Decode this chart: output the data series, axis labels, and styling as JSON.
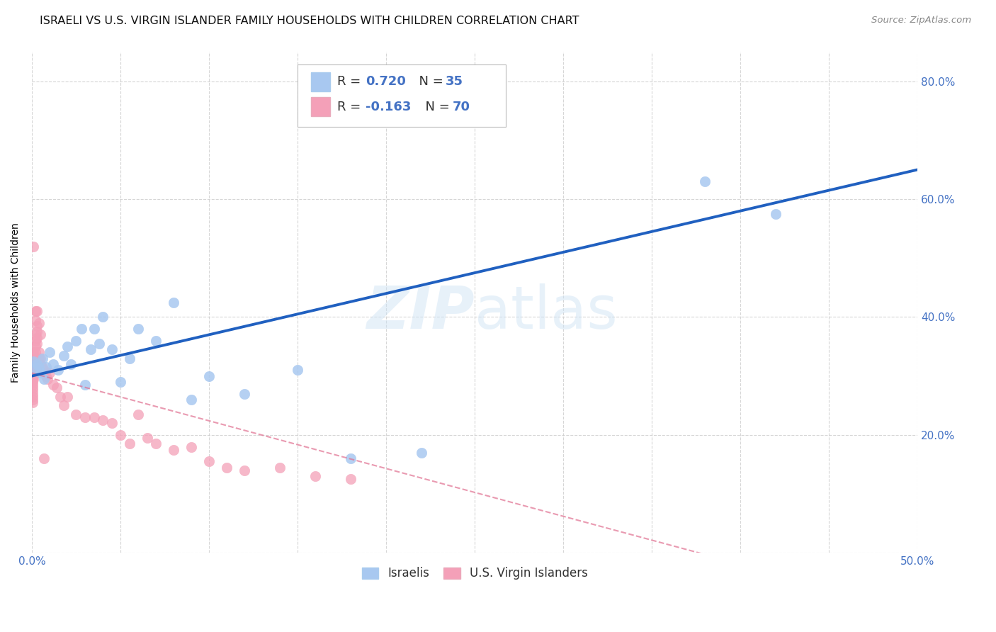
{
  "title": "ISRAELI VS U.S. VIRGIN ISLANDER FAMILY HOUSEHOLDS WITH CHILDREN CORRELATION CHART",
  "source": "Source: ZipAtlas.com",
  "ylabel": "Family Households with Children",
  "watermark": "ZIPatlas",
  "xlim": [
    0.0,
    0.5
  ],
  "ylim": [
    0.0,
    0.85
  ],
  "xtick_vals": [
    0.0,
    0.05,
    0.1,
    0.15,
    0.2,
    0.25,
    0.3,
    0.35,
    0.4,
    0.45,
    0.5
  ],
  "ytick_vals": [
    0.0,
    0.2,
    0.4,
    0.6,
    0.8
  ],
  "legend_r1": "R =  0.720",
  "legend_n1": "N = 35",
  "legend_r2": "R = -0.163",
  "legend_n2": "N = 70",
  "legend_labels": [
    "Israelis",
    "U.S. Virgin Islanders"
  ],
  "israeli_color": "#A8C8F0",
  "usvi_color": "#F4A0B8",
  "reg_line_israeli_color": "#2060C0",
  "reg_line_usvi_color": "#E07090",
  "background_color": "#FFFFFF",
  "grid_color": "#CCCCCC",
  "blue_text": "#4472C4",
  "title_fontsize": 11.5,
  "tick_fontsize": 11,
  "israeli_x": [
    0.001,
    0.002,
    0.003,
    0.004,
    0.005,
    0.006,
    0.007,
    0.008,
    0.01,
    0.012,
    0.015,
    0.018,
    0.02,
    0.022,
    0.025,
    0.028,
    0.03,
    0.033,
    0.035,
    0.038,
    0.04,
    0.045,
    0.05,
    0.055,
    0.06,
    0.07,
    0.08,
    0.09,
    0.1,
    0.12,
    0.15,
    0.18,
    0.22,
    0.38,
    0.42
  ],
  "israeli_y": [
    0.325,
    0.31,
    0.32,
    0.315,
    0.305,
    0.33,
    0.295,
    0.315,
    0.34,
    0.32,
    0.31,
    0.335,
    0.35,
    0.32,
    0.36,
    0.38,
    0.285,
    0.345,
    0.38,
    0.355,
    0.4,
    0.345,
    0.29,
    0.33,
    0.38,
    0.36,
    0.425,
    0.26,
    0.3,
    0.27,
    0.31,
    0.16,
    0.17,
    0.63,
    0.575
  ],
  "usvi_x": [
    0.0005,
    0.0005,
    0.0005,
    0.0005,
    0.0005,
    0.0005,
    0.0005,
    0.0005,
    0.0005,
    0.0005,
    0.0005,
    0.0005,
    0.001,
    0.001,
    0.001,
    0.001,
    0.001,
    0.001,
    0.001,
    0.001,
    0.001,
    0.001,
    0.002,
    0.002,
    0.002,
    0.002,
    0.002,
    0.003,
    0.003,
    0.003,
    0.003,
    0.004,
    0.004,
    0.005,
    0.005,
    0.006,
    0.006,
    0.007,
    0.008,
    0.009,
    0.01,
    0.012,
    0.014,
    0.016,
    0.018,
    0.02,
    0.025,
    0.03,
    0.035,
    0.04,
    0.045,
    0.05,
    0.055,
    0.06,
    0.065,
    0.07,
    0.08,
    0.09,
    0.1,
    0.11,
    0.12,
    0.14,
    0.16,
    0.18,
    0.001,
    0.002,
    0.003,
    0.004,
    0.005,
    0.007
  ],
  "usvi_y": [
    0.31,
    0.305,
    0.3,
    0.295,
    0.29,
    0.285,
    0.28,
    0.275,
    0.27,
    0.265,
    0.26,
    0.255,
    0.34,
    0.335,
    0.33,
    0.325,
    0.32,
    0.315,
    0.31,
    0.305,
    0.3,
    0.295,
    0.37,
    0.36,
    0.35,
    0.34,
    0.395,
    0.385,
    0.375,
    0.365,
    0.355,
    0.34,
    0.33,
    0.33,
    0.32,
    0.31,
    0.315,
    0.31,
    0.3,
    0.295,
    0.305,
    0.285,
    0.28,
    0.265,
    0.25,
    0.265,
    0.235,
    0.23,
    0.23,
    0.225,
    0.22,
    0.2,
    0.185,
    0.235,
    0.195,
    0.185,
    0.175,
    0.18,
    0.155,
    0.145,
    0.14,
    0.145,
    0.13,
    0.125,
    0.52,
    0.41,
    0.41,
    0.39,
    0.37,
    0.16
  ]
}
